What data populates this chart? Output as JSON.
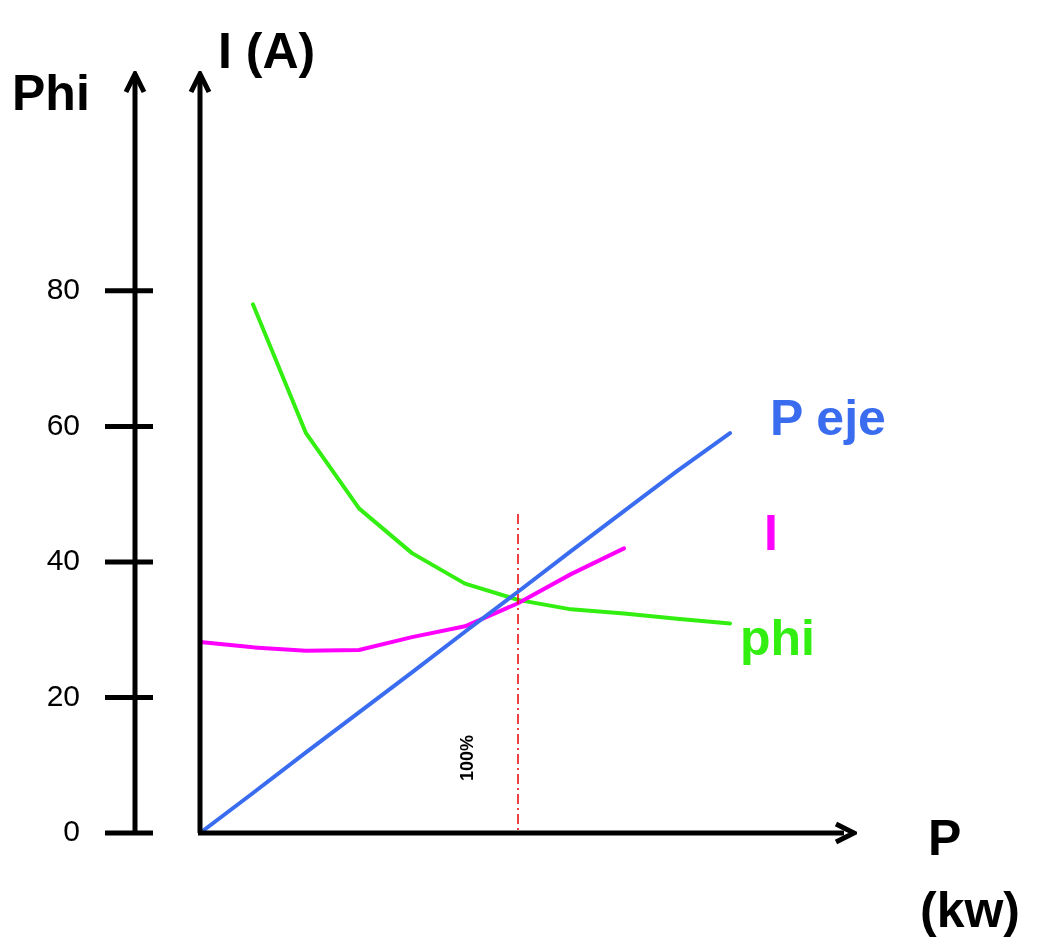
{
  "chart_data": {
    "type": "line",
    "xlabel": "P\n(kw)",
    "ylabel": "Phi",
    "y2label": "I (A)",
    "categories": [
      null,
      null,
      null,
      null,
      null,
      null,
      null,
      null,
      null,
      null,
      null,
      null,
      null
    ],
    "ylim": [
      0,
      112
    ],
    "yticks": [
      0,
      20,
      40,
      60,
      80
    ],
    "tick_labels": "y",
    "grid": false,
    "legend": false,
    "marker": "none",
    "line_style": "solid",
    "series": [
      {
        "name": "P eje",
        "color": "#3a6cf0",
        "values": [
          0,
          5.9,
          11.9,
          17.8,
          23.7,
          29.7,
          35.6,
          41.6,
          47.5,
          53.4,
          59,
          null,
          null
        ]
      },
      {
        "name": "I",
        "color": "#ff00ff",
        "values": [
          28.2,
          27.4,
          26.9,
          27.0,
          28.9,
          30.5,
          33.9,
          38.2,
          42.0,
          null,
          null,
          null,
          null
        ]
      },
      {
        "name": "phi",
        "color": "#33ee11",
        "values": [
          null,
          78,
          59,
          47.9,
          41.3,
          36.8,
          34.4,
          33.0,
          32.4,
          31.6,
          30.9,
          null,
          null
        ]
      }
    ],
    "annotations": [
      "100%"
    ]
  }
}
